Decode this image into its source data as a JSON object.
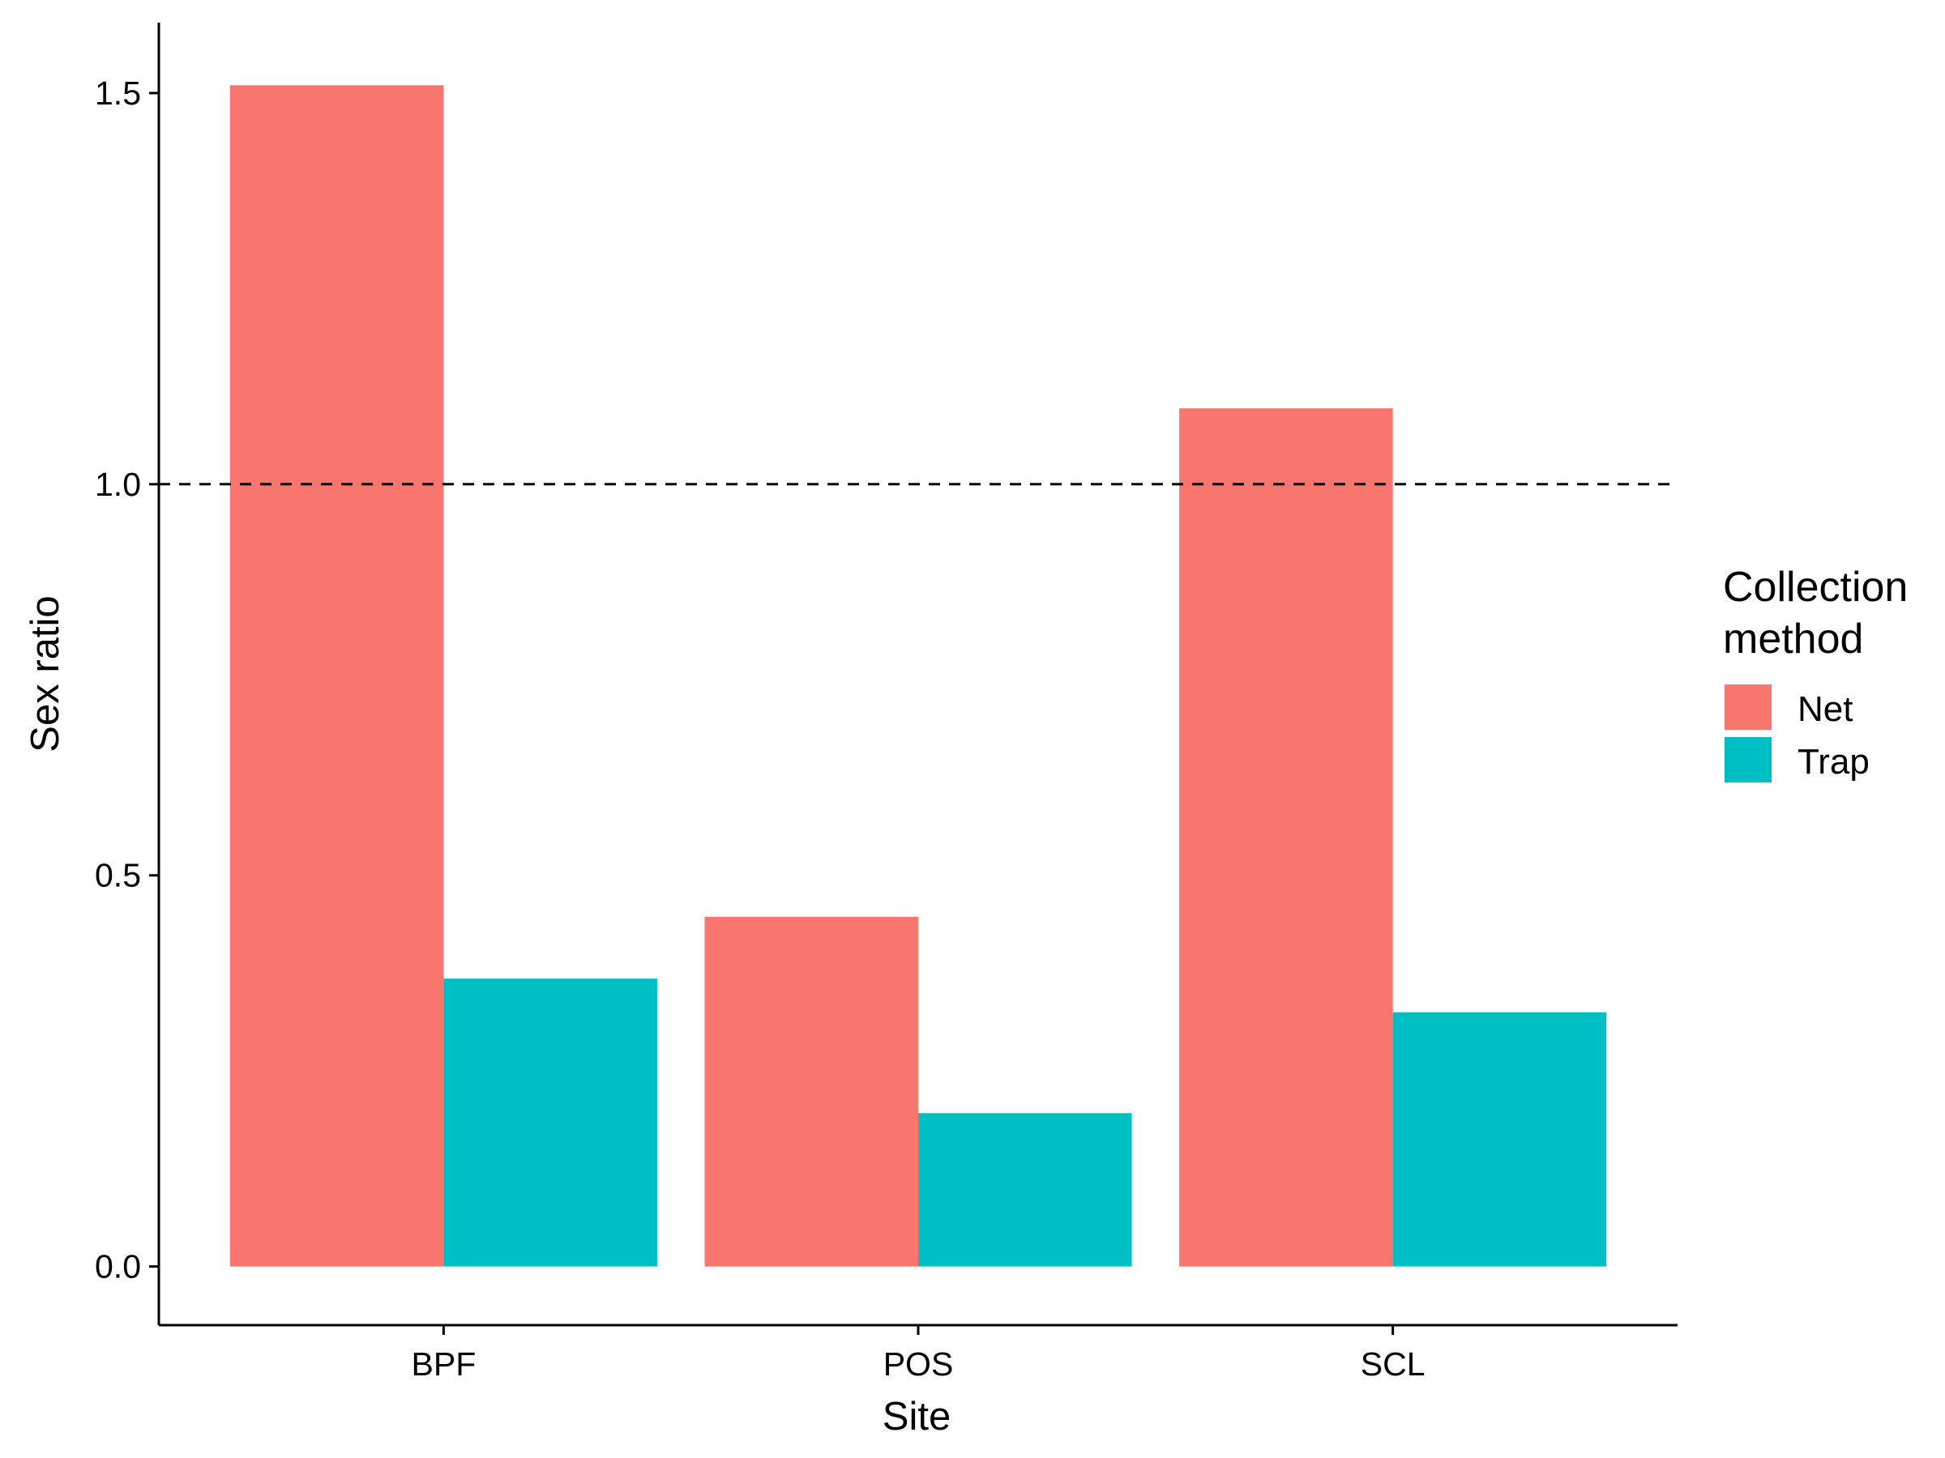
{
  "chart_data": {
    "type": "bar",
    "categories": [
      "BPF",
      "POS",
      "SCL"
    ],
    "series": [
      {
        "name": "Net",
        "values": [
          1.51,
          0.447,
          1.097
        ],
        "color": "#F8766D"
      },
      {
        "name": "Trap",
        "values": [
          0.368,
          0.196,
          0.325
        ],
        "color": "#00BFC4"
      }
    ],
    "xlabel": "Site",
    "ylabel": "Sex ratio",
    "ylim": [
      -0.075,
      1.59
    ],
    "yticks": [
      0.0,
      0.5,
      1.0,
      1.5
    ],
    "ytick_labels": [
      "0.0",
      "0.5",
      "1.0",
      "1.5"
    ],
    "reference_line": {
      "y": 1.0,
      "style": "dashed",
      "color": "#000000"
    },
    "legend": {
      "title_lines": [
        "Collection",
        "method"
      ],
      "position": "right"
    },
    "grid": false
  }
}
